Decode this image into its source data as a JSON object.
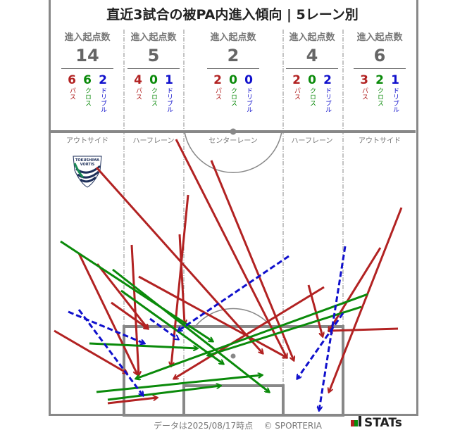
{
  "title": "直近3試合の被PA内進入傾向 | 5レーン別",
  "colors": {
    "pass": "#b22222",
    "cross": "#0a8a0a",
    "dribble": "#1010cc",
    "line": "#888888"
  },
  "lanes": [
    {
      "label": "進入起点数",
      "total": "14",
      "pass": "6",
      "cross": "6",
      "dribble": "2",
      "lane_name": "アウトサイド"
    },
    {
      "label": "進入起点数",
      "total": "5",
      "pass": "4",
      "cross": "0",
      "dribble": "1",
      "lane_name": "ハーフレーン"
    },
    {
      "label": "進入起点数",
      "total": "2",
      "pass": "2",
      "cross": "0",
      "dribble": "0",
      "lane_name": "センターレーン"
    },
    {
      "label": "進入起点数",
      "total": "4",
      "pass": "2",
      "cross": "0",
      "dribble": "2",
      "lane_name": "ハーフレーン"
    },
    {
      "label": "進入起点数",
      "total": "6",
      "pass": "3",
      "cross": "2",
      "dribble": "1",
      "lane_name": "アウトサイド"
    }
  ],
  "legend": {
    "pass": "パス",
    "cross": "クロス",
    "dribble": "ドリブル"
  },
  "logo_text": "TOKUSHIMA VORTIS",
  "footer": {
    "date_note": "データは2025/08/17時点",
    "copyright": "© SPORTERIA",
    "brand": "STATs"
  }
}
